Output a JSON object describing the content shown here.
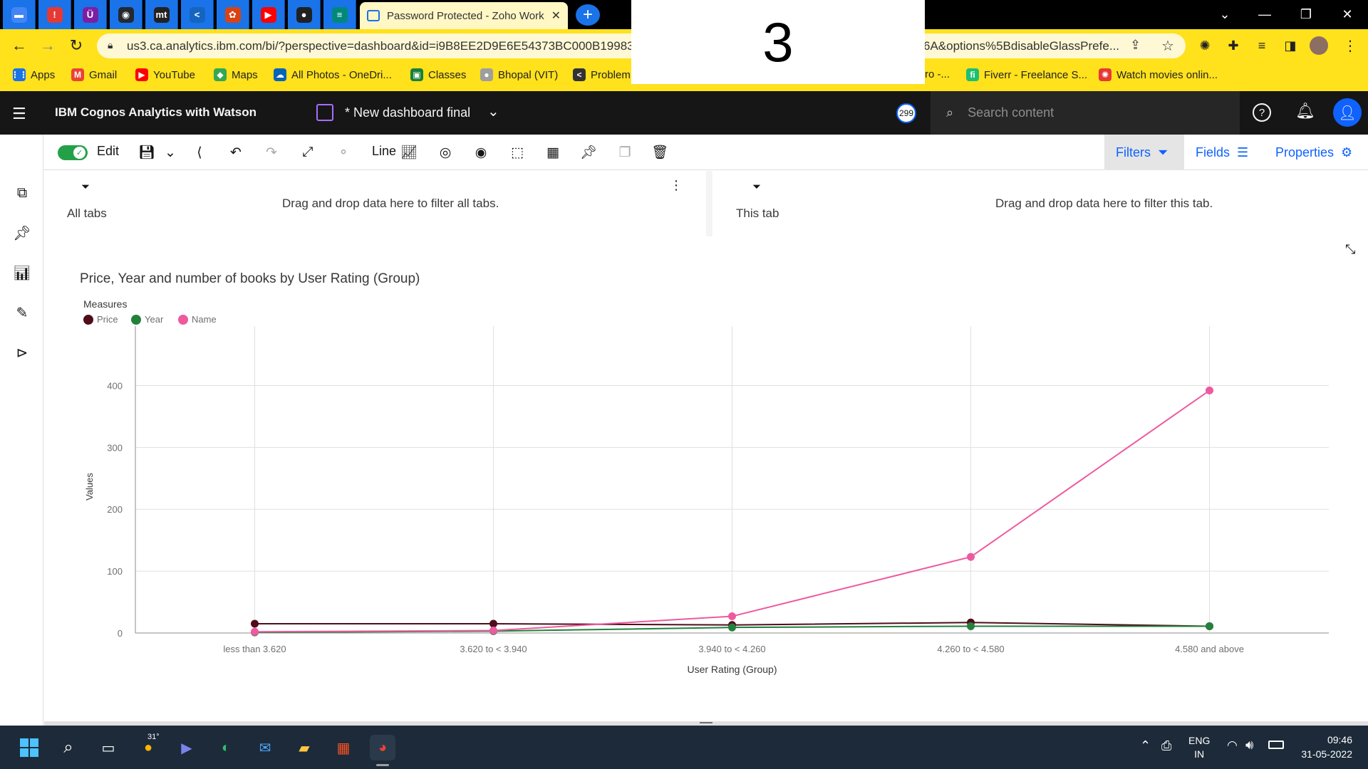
{
  "browser": {
    "favicons": [
      {
        "name": "tab-favicon-1",
        "color": "#4285f4",
        "glyph": "▬"
      },
      {
        "name": "tab-favicon-2",
        "color": "#e53935",
        "glyph": "!"
      },
      {
        "name": "tab-favicon-3",
        "color": "#7b1fa2",
        "glyph": "Ü"
      },
      {
        "name": "tab-favicon-4",
        "color": "#24292f",
        "glyph": "◉"
      },
      {
        "name": "tab-favicon-5",
        "color": "#222222",
        "glyph": "mt"
      },
      {
        "name": "tab-favicon-6",
        "color": "#1565c0",
        "glyph": "<"
      },
      {
        "name": "tab-favicon-7",
        "color": "#d84315",
        "glyph": "✿"
      },
      {
        "name": "tab-favicon-8",
        "color": "#ff0000",
        "glyph": "▶"
      },
      {
        "name": "tab-favicon-9",
        "color": "#202124",
        "glyph": "●"
      },
      {
        "name": "tab-favicon-10",
        "color": "#00897b",
        "glyph": "≡"
      }
    ],
    "active_tab_title": "Password Protected - Zoho Work",
    "url_start": "us3.ca.analytics.ibm.com/bi/?perspective=dashboard&id=i9B8EE2D9E6E54373BC000B19983",
    "url_end": "6A&options%5BdisableGlassPrefe...",
    "bookmarks": [
      {
        "label": "Apps",
        "color": "#1a73e8",
        "glyph": "⋮⋮"
      },
      {
        "label": "Gmail",
        "color": "#ea4335",
        "glyph": "M"
      },
      {
        "label": "YouTube",
        "color": "#ff0000",
        "glyph": "▶"
      },
      {
        "label": "Maps",
        "color": "#34a853",
        "glyph": "◆"
      },
      {
        "label": "All Photos - OneDri...",
        "color": "#0364b8",
        "glyph": "☁"
      },
      {
        "label": "Classes",
        "color": "#188038",
        "glyph": "▣"
      },
      {
        "label": "Bhopal (VIT)",
        "color": "#9e9e9e",
        "glyph": "●"
      },
      {
        "label": "Problem",
        "color": "#333333",
        "glyph": "<"
      }
    ],
    "bookmarks_right": [
      {
        "label": "ro -...",
        "color": "#ffe11c",
        "glyph": ""
      },
      {
        "label": "Fiverr - Freelance S...",
        "color": "#1dbf73",
        "glyph": "fi"
      },
      {
        "label": "Watch movies onlin...",
        "color": "#e53935",
        "glyph": "✺"
      }
    ]
  },
  "overlay_number": "3",
  "app": {
    "name_plain": "IBM ",
    "name_bold": "Cognos Analytics with Watson",
    "dashboard_title": "* New dashboard final",
    "notification_count": "299",
    "search_placeholder": "Search content"
  },
  "toolbar": {
    "edit_label": "Edit",
    "viz_label": "Line",
    "filters_label": "Filters",
    "fields_label": "Fields",
    "properties_label": "Properties"
  },
  "filters": {
    "all_tabs_label": "All tabs",
    "all_tabs_hint": "Drag and drop data here to filter all tabs.",
    "this_tab_label": "This tab",
    "this_tab_hint": "Drag and drop data here to filter this tab."
  },
  "chart_data": {
    "type": "line",
    "title": "Price, Year and number of books by User Rating (Group)",
    "legend_title": "Measures",
    "legend_placement": "top-left",
    "xlabel": "User Rating (Group)",
    "ylabel": "Values",
    "ylim": [
      0,
      450
    ],
    "yticks": [
      0,
      100,
      200,
      300,
      400
    ],
    "grid": true,
    "categories": [
      "less than 3.620",
      "3.620 to < 3.940",
      "3.940 to < 4.260",
      "4.260 to < 4.580",
      "4.580 and above"
    ],
    "series": [
      {
        "name": "Price",
        "color": "#4f0d1c",
        "values": [
          15,
          15,
          13,
          17,
          11
        ]
      },
      {
        "name": "Year",
        "color": "#24803c",
        "values": [
          1,
          3,
          9,
          11,
          11
        ]
      },
      {
        "name": "Name",
        "color": "#ee5a9f",
        "values": [
          2,
          4,
          27,
          123,
          392
        ]
      }
    ]
  },
  "taskbar": {
    "weather_temp": "31°",
    "language_line1": "ENG",
    "language_line2": "IN",
    "time": "09:46",
    "date": "31-05-2022"
  }
}
